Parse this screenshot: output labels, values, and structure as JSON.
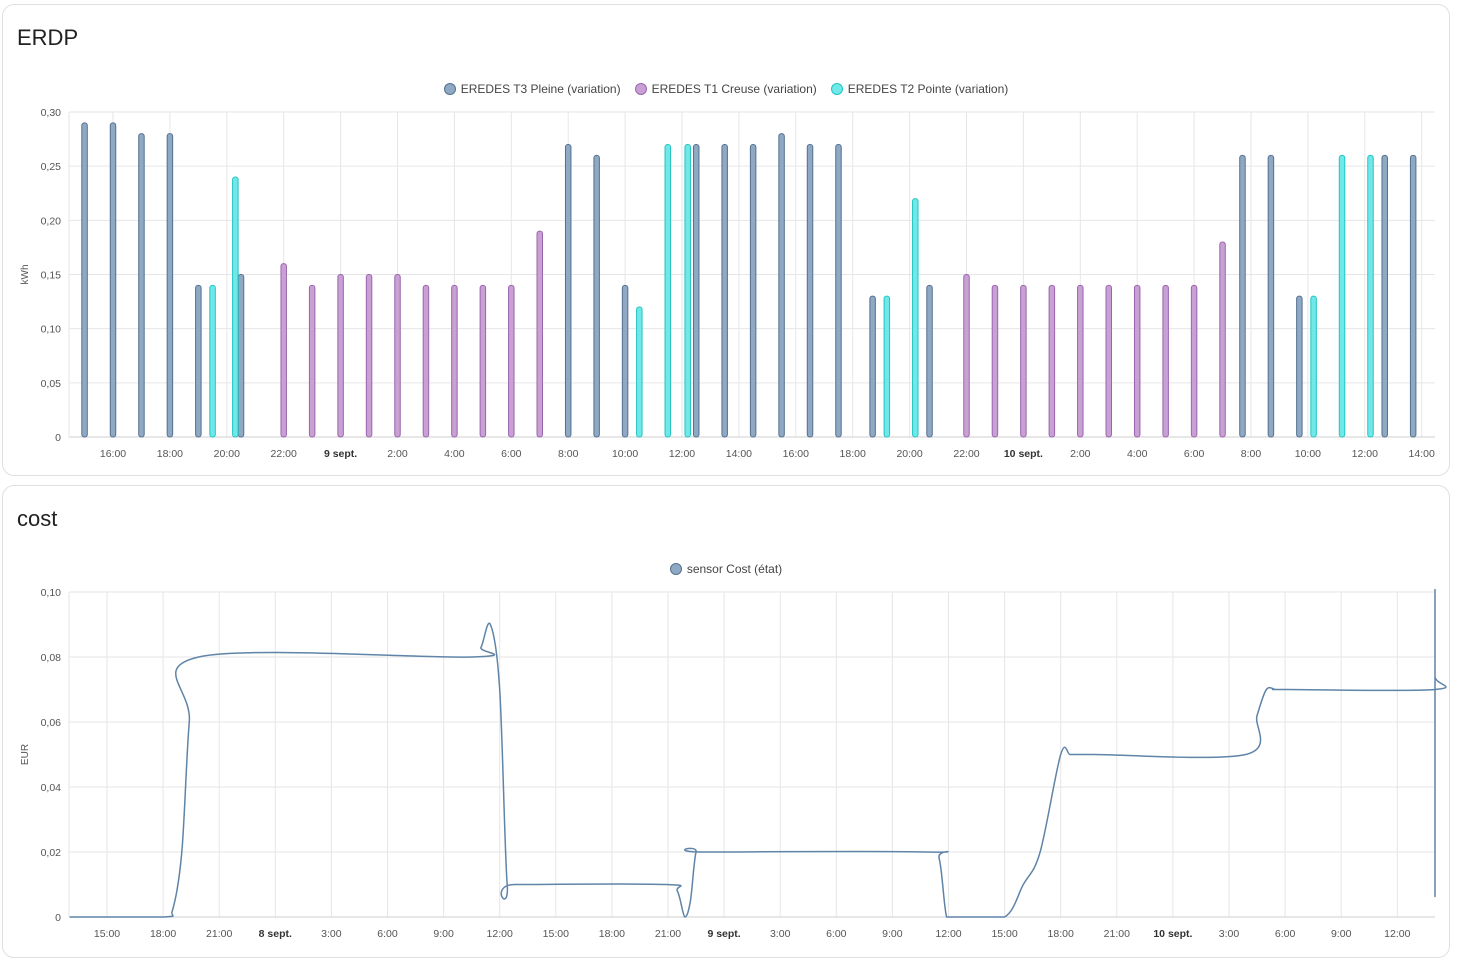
{
  "cards": [
    {
      "title": "ERDP",
      "chart_data": {
        "type": "bar",
        "title": "",
        "ylabel": "kWh",
        "ylim": [
          0,
          0.3
        ],
        "yticks": [
          "0",
          "0,05",
          "0,10",
          "0,15",
          "0,20",
          "0,25",
          "0,30"
        ],
        "xlabels": [
          "16:00",
          "18:00",
          "20:00",
          "22:00",
          "9 sept.",
          "2:00",
          "4:00",
          "6:00",
          "8:00",
          "10:00",
          "12:00",
          "14:00",
          "16:00",
          "18:00",
          "20:00",
          "22:00",
          "10 sept.",
          "2:00",
          "4:00",
          "6:00",
          "8:00",
          "10:00",
          "12:00",
          "14:00"
        ],
        "bold_labels": [
          "9 sept.",
          "10 sept."
        ],
        "legend_position": "top-center",
        "grid": true,
        "series": [
          {
            "name": "EREDES T3 Pleine (variation)",
            "color": "#8fa9c4",
            "stroke": "#54708f",
            "points": [
              [
                15,
                0.29
              ],
              [
                16,
                0.29
              ],
              [
                17,
                0.28
              ],
              [
                18,
                0.28
              ],
              [
                19,
                0.14
              ],
              [
                20.5,
                0.15
              ],
              [
                8,
                0.27
              ],
              [
                9,
                0.26
              ],
              [
                10,
                0.14
              ],
              [
                12.5,
                0.27
              ],
              [
                13.5,
                0.27
              ],
              [
                14.5,
                0.27
              ],
              [
                15.5,
                0.28
              ],
              [
                16.5,
                0.27
              ],
              [
                17.5,
                0.27
              ],
              [
                18.7,
                0.13
              ],
              [
                20.7,
                0.14
              ],
              [
                7.7,
                0.26
              ],
              [
                8.7,
                0.26
              ],
              [
                9.7,
                0.13
              ],
              [
                12.7,
                0.26
              ],
              [
                13.7,
                0.26
              ]
            ]
          },
          {
            "name": "EREDES T1 Creuse (variation)",
            "color": "#c8a0d4",
            "stroke": "#9b64ae",
            "points": [
              [
                22,
                0.16
              ],
              [
                23,
                0.14
              ],
              [
                0,
                0.15
              ],
              [
                1,
                0.15
              ],
              [
                2,
                0.15
              ],
              [
                3,
                0.14
              ],
              [
                4,
                0.14
              ],
              [
                5,
                0.14
              ],
              [
                6,
                0.14
              ],
              [
                7,
                0.19
              ],
              [
                22,
                0.15
              ],
              [
                23,
                0.14
              ],
              [
                0,
                0.14
              ],
              [
                1,
                0.14
              ],
              [
                2,
                0.14
              ],
              [
                3,
                0.14
              ],
              [
                4,
                0.14
              ],
              [
                5,
                0.14
              ],
              [
                6,
                0.14
              ],
              [
                7,
                0.18
              ]
            ]
          },
          {
            "name": "EREDES T2 Pointe (variation)",
            "color": "#70e8e8",
            "stroke": "#22c4c4",
            "points": [
              [
                19.5,
                0.14
              ],
              [
                20.3,
                0.24
              ],
              [
                10.5,
                0.12
              ],
              [
                11.5,
                0.27
              ],
              [
                12.2,
                0.27
              ],
              [
                19.2,
                0.13
              ],
              [
                20.2,
                0.22
              ],
              [
                10.2,
                0.13
              ],
              [
                11.2,
                0.26
              ],
              [
                12.2,
                0.26
              ]
            ]
          }
        ]
      }
    },
    {
      "title": "cost",
      "chart_data": {
        "type": "line",
        "title": "",
        "ylabel": "EUR",
        "ylim": [
          0,
          0.1
        ],
        "yticks": [
          "0",
          "0,02",
          "0,04",
          "0,06",
          "0,08",
          "0,10"
        ],
        "xlabels": [
          "15:00",
          "18:00",
          "21:00",
          "8 sept.",
          "3:00",
          "6:00",
          "9:00",
          "12:00",
          "15:00",
          "18:00",
          "21:00",
          "9 sept.",
          "3:00",
          "6:00",
          "9:00",
          "12:00",
          "15:00",
          "18:00",
          "21:00",
          "10 sept.",
          "3:00",
          "6:00",
          "9:00",
          "12:00"
        ],
        "bold_labels": [
          "8 sept.",
          "9 sept.",
          "10 sept."
        ],
        "legend_position": "top-center",
        "grid": true,
        "series": [
          {
            "name": "sensor Cost (état)",
            "color": "#8fa9c4",
            "stroke": "#54708f",
            "x_hours_from_15_00_day0": [
              -2,
              3,
              3.5,
              4,
              4.4,
              4.9,
              19.5,
              20,
              20.5,
              21,
              21.4,
              21.8,
              29.9,
              30.5,
              30.9,
              31.2,
              31.5,
              31.9,
              43.9,
              44.5,
              44.9,
              45.4,
              45.9,
              48.0,
              49.0,
              49.9,
              51,
              51.5,
              52,
              52.4,
              52.8,
              60.9,
              61.5,
              62,
              62.5,
              63.1,
              75.5,
              76.1,
              76.6,
              77.1,
              77.6,
              77.9,
              78.3,
              78.8,
              79.1,
              80.5
            ],
            "values": [
              0,
              0,
              0.002,
              0.02,
              0.06,
              0.08,
              0.08,
              0.083,
              0.09,
              0.07,
              0.01,
              0.01,
              0.01,
              0.008,
              0.0,
              0.005,
              0.02,
              0.02,
              0.02,
              0.018,
              0.0,
              0.0,
              0.0,
              0.0,
              0.01,
              0.02,
              0.05,
              0.05,
              0.05,
              0.05,
              0.05,
              0.05,
              0.062,
              0.07,
              0.07,
              0.07,
              0.07,
              0.074,
              0.085,
              0.1,
              0.06,
              0.01,
              0.01,
              0.01,
              0.01,
              0.01
            ]
          }
        ]
      }
    }
  ]
}
